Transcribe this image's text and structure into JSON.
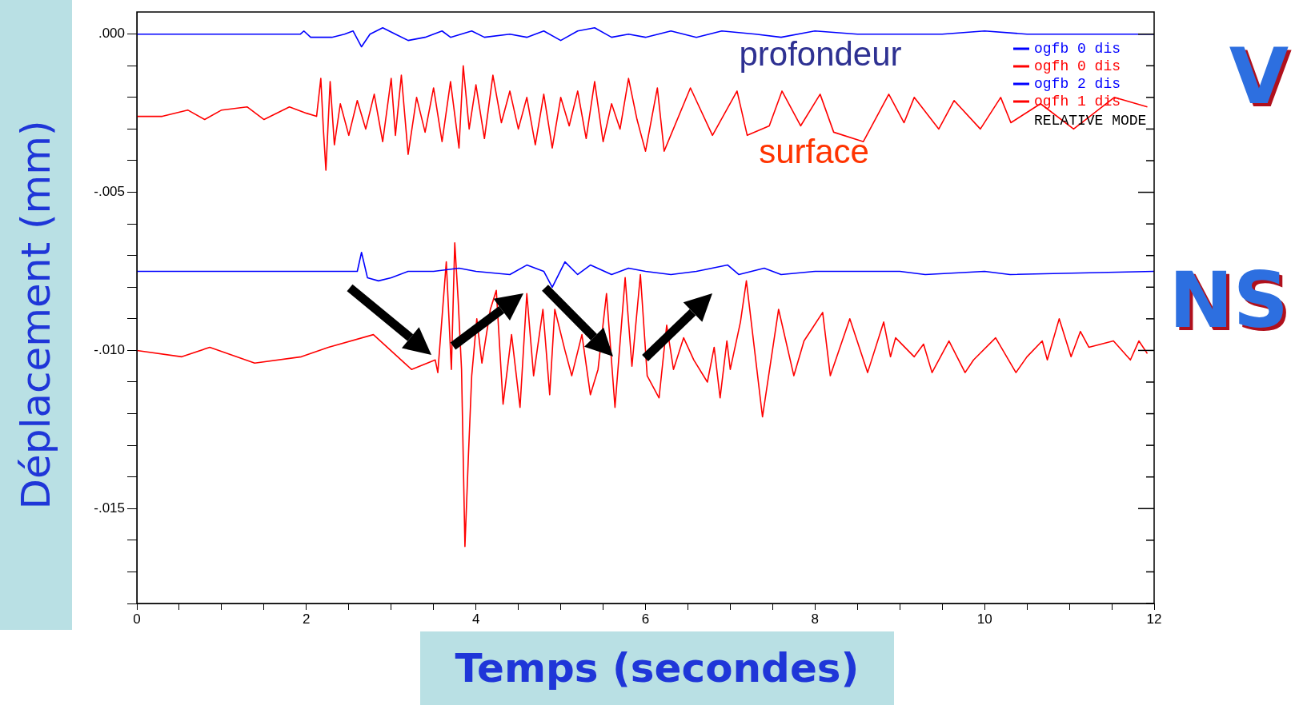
{
  "chart_data": {
    "type": "line",
    "xlabel": "Temps (secondes)",
    "ylabel": "Déplacement (mm)",
    "xlim": [
      0,
      12
    ],
    "xticks": [
      0,
      {
        "value": 0.5,
        "label": null
      },
      {
        "value": 1,
        "label": null
      },
      {
        "value": 1.5,
        "label": null
      },
      2,
      {
        "value": 2.5,
        "label": null
      },
      {
        "value": 3,
        "label": null
      },
      {
        "value": 3.5,
        "label": null
      },
      4,
      {
        "value": 4.5,
        "label": null
      },
      {
        "value": 5,
        "label": null
      },
      {
        "value": 5.5,
        "label": null
      },
      6,
      {
        "value": 6.5,
        "label": null
      },
      {
        "value": 7,
        "label": null
      },
      {
        "value": 7.5,
        "label": null
      },
      8,
      {
        "value": 8.5,
        "label": null
      },
      {
        "value": 9,
        "label": null
      },
      {
        "value": 9.5,
        "label": null
      },
      10,
      {
        "value": 10.5,
        "label": null
      },
      {
        "value": 11,
        "label": null
      },
      {
        "value": 11.5,
        "label": null
      },
      12
    ],
    "ylim": [
      -0.018,
      0.0007
    ],
    "yticks": [
      {
        "value": 0,
        "label": ".000"
      },
      {
        "value": -0.001,
        "label": null
      },
      {
        "value": -0.002,
        "label": null
      },
      {
        "value": -0.003,
        "label": null
      },
      {
        "value": -0.004,
        "label": null
      },
      {
        "value": -0.005,
        "label": "-.005"
      },
      {
        "value": -0.006,
        "label": null
      },
      {
        "value": -0.007,
        "label": null
      },
      {
        "value": -0.008,
        "label": null
      },
      {
        "value": -0.009,
        "label": null
      },
      {
        "value": -0.01,
        "label": "-.010"
      },
      {
        "value": -0.011,
        "label": null
      },
      {
        "value": -0.012,
        "label": null
      },
      {
        "value": -0.013,
        "label": null
      },
      {
        "value": -0.014,
        "label": null
      },
      {
        "value": -0.015,
        "label": "-.015"
      },
      {
        "value": -0.016,
        "label": null
      },
      {
        "value": -0.017,
        "label": null
      },
      {
        "value": -0.018,
        "label": null
      }
    ],
    "grid": false,
    "legend": "top right",
    "annotations": [
      "profondeur",
      "surface",
      "RELATIVE MODE",
      "V",
      "NS"
    ],
    "series": [
      {
        "name": "ogfb 0 dis",
        "color": "#0000ff",
        "x": [
          0,
          1.93,
          1.97,
          2.05,
          2.3,
          2.45,
          2.55,
          2.65,
          2.75,
          2.9,
          3.05,
          3.2,
          3.4,
          3.6,
          3.7,
          3.95,
          4.1,
          4.4,
          4.6,
          4.8,
          5.0,
          5.2,
          5.4,
          5.6,
          5.8,
          6.0,
          6.3,
          6.6,
          6.9,
          7.3,
          7.6,
          8.0,
          8.5,
          9.0,
          9.5,
          10.0,
          10.5,
          11.0,
          12
        ],
        "values": [
          0,
          0,
          0.0001,
          -0.0001,
          -0.0001,
          0,
          0.0001,
          -0.0004,
          0,
          0.0002,
          0,
          -0.0002,
          -0.0001,
          0.0001,
          -0.0001,
          0.0001,
          -0.0001,
          0,
          -0.0001,
          0.0001,
          -0.0002,
          0.0001,
          0.0002,
          -0.0001,
          0,
          -0.0001,
          0.0001,
          -0.0001,
          0.0001,
          0,
          -0.0001,
          0.0001,
          0,
          0,
          0,
          0.0001,
          0,
          0,
          0
        ]
      },
      {
        "name": "ogfh 0 dis",
        "color": "#ff0000",
        "x": [
          0,
          0.3,
          0.6,
          0.8,
          1.0,
          1.3,
          1.5,
          1.8,
          2.0,
          2.12,
          2.17,
          2.2,
          2.23,
          2.28,
          2.33,
          2.4,
          2.5,
          2.6,
          2.7,
          2.8,
          2.9,
          3.0,
          3.05,
          3.12,
          3.2,
          3.3,
          3.4,
          3.5,
          3.6,
          3.7,
          3.8,
          3.85,
          3.92,
          4.0,
          4.1,
          4.2,
          4.3,
          4.4,
          4.5,
          4.6,
          4.7,
          4.8,
          4.9,
          5.0,
          5.1,
          5.2,
          5.3,
          5.4,
          5.5,
          5.6,
          5.7,
          5.8,
          5.9,
          6.0,
          6.14,
          6.22,
          6.53,
          6.79,
          7.08,
          7.2,
          7.46,
          7.61,
          7.83,
          8.06,
          8.22,
          8.57,
          8.87,
          9.05,
          9.17,
          9.46,
          9.64,
          9.95,
          10.19,
          10.31,
          10.66,
          11.05,
          11.53,
          11.92
        ],
        "values": [
          -0.0026,
          -0.0026,
          -0.0024,
          -0.0027,
          -0.0024,
          -0.0023,
          -0.0027,
          -0.0023,
          -0.0025,
          -0.0026,
          -0.0014,
          -0.003,
          -0.0043,
          -0.0015,
          -0.0035,
          -0.0022,
          -0.0032,
          -0.0021,
          -0.003,
          -0.0019,
          -0.0034,
          -0.0014,
          -0.0032,
          -0.0013,
          -0.0038,
          -0.002,
          -0.0031,
          -0.0017,
          -0.0034,
          -0.0015,
          -0.0036,
          -0.001,
          -0.003,
          -0.0016,
          -0.0033,
          -0.0013,
          -0.0028,
          -0.0018,
          -0.003,
          -0.002,
          -0.0035,
          -0.0019,
          -0.0036,
          -0.002,
          -0.0029,
          -0.0018,
          -0.0033,
          -0.0015,
          -0.0034,
          -0.0022,
          -0.003,
          -0.0014,
          -0.0027,
          -0.0037,
          -0.0017,
          -0.0037,
          -0.0017,
          -0.0032,
          -0.0018,
          -0.0032,
          -0.0029,
          -0.0018,
          -0.0029,
          -0.0019,
          -0.0031,
          -0.0034,
          -0.0019,
          -0.0028,
          -0.002,
          -0.003,
          -0.0021,
          -0.003,
          -0.002,
          -0.0028,
          -0.0022,
          -0.003,
          -0.002,
          -0.0023
        ]
      },
      {
        "name": "ogfb 2 dis",
        "color": "#0000ff",
        "x": [
          0,
          1.9,
          2.6,
          2.65,
          2.72,
          2.85,
          3.0,
          3.2,
          3.5,
          3.8,
          4.0,
          4.4,
          4.6,
          4.8,
          4.9,
          5.05,
          5.2,
          5.35,
          5.6,
          5.8,
          6.0,
          6.3,
          6.6,
          6.97,
          7.1,
          7.4,
          7.6,
          8.0,
          9.0,
          9.3,
          10.0,
          10.3,
          12
        ],
        "values": [
          -0.0075,
          -0.0075,
          -0.0075,
          -0.0069,
          -0.0077,
          -0.0078,
          -0.0077,
          -0.0075,
          -0.0075,
          -0.0074,
          -0.0075,
          -0.0076,
          -0.0073,
          -0.0075,
          -0.008,
          -0.0072,
          -0.0076,
          -0.0073,
          -0.0076,
          -0.0074,
          -0.0075,
          -0.0076,
          -0.0075,
          -0.0073,
          -0.0076,
          -0.0074,
          -0.0076,
          -0.0075,
          -0.0075,
          -0.0076,
          -0.0075,
          -0.0076,
          -0.0075
        ]
      },
      {
        "name": "ogfh 1 dis",
        "color": "#ff0000",
        "x": [
          0,
          0.53,
          0.86,
          1.39,
          1.94,
          2.26,
          2.79,
          3.24,
          3.52,
          3.55,
          3.65,
          3.71,
          3.75,
          3.79,
          3.83,
          3.87,
          3.91,
          3.95,
          4.01,
          4.07,
          4.17,
          4.24,
          4.32,
          4.42,
          4.52,
          4.6,
          4.68,
          4.79,
          4.87,
          4.93,
          5.05,
          5.13,
          5.25,
          5.35,
          5.44,
          5.54,
          5.64,
          5.76,
          5.84,
          5.94,
          6.02,
          6.16,
          6.25,
          6.33,
          6.45,
          6.57,
          6.73,
          6.81,
          6.88,
          6.96,
          7.0,
          7.12,
          7.19,
          7.38,
          7.57,
          7.75,
          7.87,
          8.09,
          8.18,
          8.41,
          8.62,
          8.81,
          8.89,
          8.95,
          9.17,
          9.28,
          9.38,
          9.58,
          9.77,
          9.87,
          10.13,
          10.37,
          10.5,
          10.68,
          10.74,
          10.88,
          11.02,
          11.13,
          11.23,
          11.52,
          11.72,
          11.82,
          11.92
        ],
        "values": [
          -0.01,
          -0.0102,
          -0.0099,
          -0.0104,
          -0.0102,
          -0.0099,
          -0.0095,
          -0.0106,
          -0.0103,
          -0.0107,
          -0.0072,
          -0.0106,
          -0.0066,
          -0.0084,
          -0.0106,
          -0.0162,
          -0.0134,
          -0.0108,
          -0.009,
          -0.0104,
          -0.0087,
          -0.0081,
          -0.0117,
          -0.0095,
          -0.0118,
          -0.0082,
          -0.0108,
          -0.0087,
          -0.0114,
          -0.0087,
          -0.01,
          -0.0108,
          -0.0095,
          -0.0114,
          -0.0106,
          -0.0082,
          -0.0118,
          -0.0077,
          -0.0105,
          -0.0076,
          -0.0108,
          -0.0115,
          -0.0092,
          -0.0106,
          -0.0096,
          -0.0103,
          -0.011,
          -0.0099,
          -0.0115,
          -0.0097,
          -0.0106,
          -0.0091,
          -0.0078,
          -0.0121,
          -0.0087,
          -0.0108,
          -0.0097,
          -0.0088,
          -0.0108,
          -0.009,
          -0.0107,
          -0.0091,
          -0.0102,
          -0.0096,
          -0.0102,
          -0.0098,
          -0.0107,
          -0.0097,
          -0.0107,
          -0.0103,
          -0.0096,
          -0.0107,
          -0.0102,
          -0.0097,
          -0.0103,
          -0.009,
          -0.0102,
          -0.0094,
          -0.0099,
          -0.0097,
          -0.0103,
          -0.0097,
          -0.0101
        ]
      }
    ]
  }
}
